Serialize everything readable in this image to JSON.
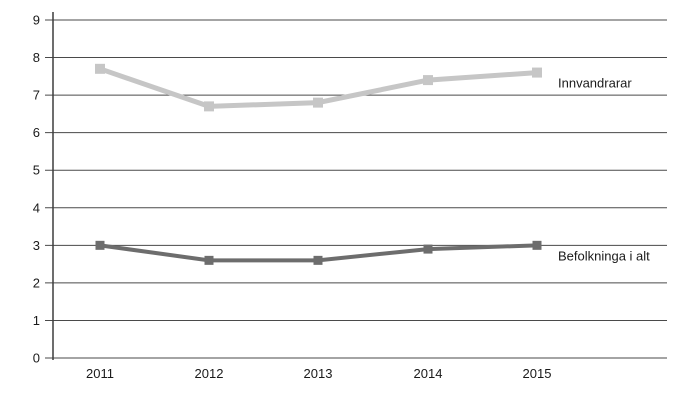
{
  "chart_data": {
    "type": "line",
    "title": "",
    "xlabel": "",
    "ylabel": "",
    "categories": [
      "2011",
      "2012",
      "2013",
      "2014",
      "2015"
    ],
    "yticks": [
      "0",
      "1",
      "2",
      "3",
      "4",
      "5",
      "6",
      "7",
      "8",
      "9"
    ],
    "ylim": [
      0,
      9
    ],
    "grid": "horizontal",
    "marker": "square",
    "legend_position": "right-of-last-point",
    "series": [
      {
        "name": "Innvandrarar",
        "values": [
          7.7,
          6.7,
          6.8,
          7.4,
          7.6
        ],
        "color": "#c6c6c6",
        "line_width": 5,
        "marker_size": 10
      },
      {
        "name": "Befolkninga i alt",
        "values": [
          3.0,
          2.6,
          2.6,
          2.9,
          3.0
        ],
        "color": "#6d6d6d",
        "line_width": 4,
        "marker_size": 9
      }
    ],
    "colors": {
      "grid": "#4a4a4a",
      "axis": "#3d3d3d",
      "text": "#1a1a1a",
      "background": "#ffffff"
    }
  }
}
